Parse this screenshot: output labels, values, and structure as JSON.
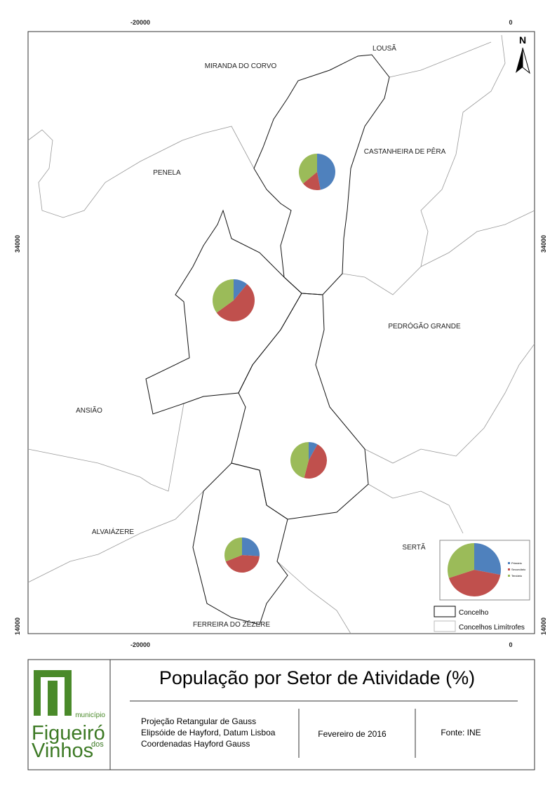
{
  "map": {
    "coords": {
      "top_left": "-20000",
      "top_right": "0",
      "bottom_left": "-20000",
      "bottom_right": "0",
      "left_top": "34000",
      "left_bottom": "14000",
      "right_top": "34000",
      "right_bottom": "14000"
    },
    "north": "N",
    "places": [
      "LOUSÃ",
      "MIRANDA DO CORVO",
      "CASTANHEIRA DE PÊRA",
      "PENELA",
      "PEDRÓGÃO GRANDE",
      "ANSIÃO",
      "ALVAIÁZERE",
      "SERTÃ",
      "FERREIRA DO ZÊZERE"
    ],
    "sectors": {
      "names": [
        "Primário",
        "Secundário",
        "Terciário"
      ],
      "colors": [
        "#4f81bd",
        "#c0504d",
        "#9bbb59"
      ]
    },
    "pies": [
      {
        "values": [
          47,
          17,
          36
        ]
      },
      {
        "values": [
          11,
          54,
          35
        ]
      },
      {
        "values": [
          8,
          46,
          46
        ]
      },
      {
        "values": [
          26,
          43,
          31
        ]
      }
    ],
    "legend_pie": {
      "values": [
        28,
        42,
        30
      ]
    },
    "legend": [
      "Concelho",
      "Concelhos Limítrofes"
    ]
  },
  "footer": {
    "title": "População por Setor de Atividade (%)",
    "projection": [
      "Projeção Retangular de Gauss",
      "Elipsóide de Hayford, Datum Lisboa",
      "Coordenadas Hayford Gauss"
    ],
    "date": "Fevereiro de 2016",
    "source": "Fonte: INE",
    "logo": {
      "top": "município",
      "name1": "Figueiró",
      "dos": "dos",
      "name2": "Vinhos"
    }
  }
}
